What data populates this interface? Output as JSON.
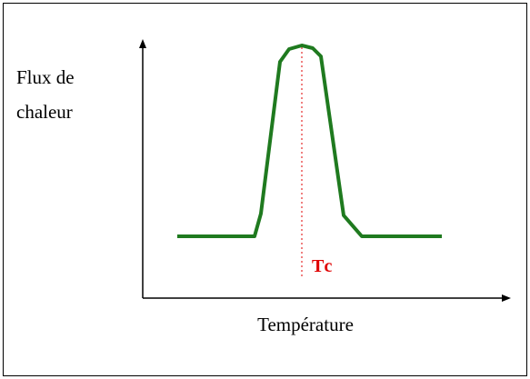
{
  "axes": {
    "y_label_lines": [
      "Flux de",
      "chaleur"
    ],
    "x_label": "Température"
  },
  "peak_label": "Tc"
}
